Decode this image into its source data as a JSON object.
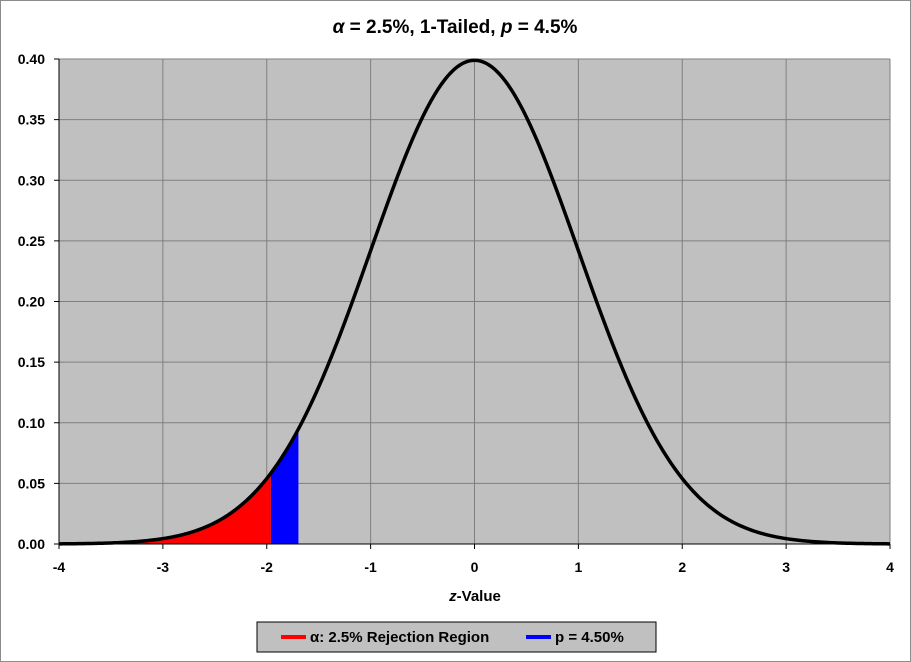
{
  "chart_data": {
    "type": "area",
    "title": {
      "alpha_symbol": "α",
      "alpha_part": " = 2.5%, 1-Tailed, ",
      "p_symbol": "p",
      "p_part": " = 4.5%"
    },
    "xlabel": {
      "italic": "z",
      "rest": "-Value"
    },
    "ylabel": "",
    "xlim": [
      -4,
      4
    ],
    "ylim": [
      0,
      0.4
    ],
    "x_ticks": [
      "-4",
      "-3",
      "-2",
      "-1",
      "0",
      "1",
      "2",
      "3",
      "4"
    ],
    "y_ticks": [
      "0.00",
      "0.05",
      "0.10",
      "0.15",
      "0.20",
      "0.25",
      "0.30",
      "0.35",
      "0.40"
    ],
    "grid": true,
    "plot_background": "#c0c0c0",
    "curve": {
      "name": "Standard normal density",
      "function": "pdf",
      "mean": 0,
      "sd": 1,
      "color": "#000000"
    },
    "series": [
      {
        "name": "α: 2.5% Rejection Region",
        "x_from": -4,
        "x_to": -1.96,
        "color": "#ff0000"
      },
      {
        "name": "p = 4.50%",
        "x_from": -1.96,
        "x_to": -1.695,
        "color": "#0000ff"
      }
    ],
    "legend": {
      "placement": "bottom-center"
    }
  }
}
